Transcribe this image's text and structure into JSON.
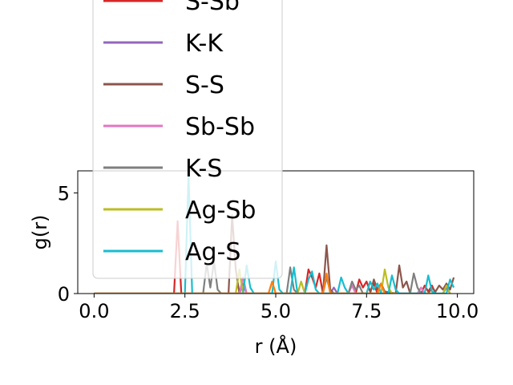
{
  "chart_data": {
    "type": "line",
    "xlabel": "r (Å)",
    "ylabel": "g(r)",
    "xlim": [
      -0.45,
      10.45
    ],
    "ylim": [
      0,
      6.1
    ],
    "xticks": [
      0.0,
      2.5,
      5.0,
      7.5,
      10.0
    ],
    "xtick_labels": [
      "0.0",
      "2.5",
      "5.0",
      "7.5",
      "10.0"
    ],
    "yticks": [
      0,
      5
    ],
    "ytick_labels": [
      "0",
      "5"
    ],
    "grid": false,
    "legend_placement": "upper-left, extending above the axes",
    "series": [
      {
        "name": "S-Sb",
        "color": "#d62728",
        "points": [
          [
            0,
            0
          ],
          [
            2.2,
            0
          ],
          [
            2.3,
            3.6
          ],
          [
            2.4,
            0
          ],
          [
            5.8,
            0
          ],
          [
            5.9,
            1.2
          ],
          [
            6.0,
            0.8
          ],
          [
            6.1,
            0.3
          ],
          [
            6.2,
            1.0
          ],
          [
            6.3,
            0
          ],
          [
            7.2,
            0
          ],
          [
            7.3,
            0.7
          ],
          [
            7.4,
            0.3
          ],
          [
            7.5,
            0.6
          ],
          [
            7.6,
            0.1
          ],
          [
            7.7,
            0.5
          ],
          [
            7.8,
            0
          ],
          [
            9.0,
            0
          ],
          [
            9.1,
            0.4
          ],
          [
            9.2,
            0.1
          ],
          [
            9.3,
            0.4
          ],
          [
            9.4,
            0
          ]
        ]
      },
      {
        "name": "K-K",
        "color": "#9467bd",
        "points": [
          [
            0,
            0
          ],
          [
            4.0,
            0
          ],
          [
            4.1,
            0.5
          ],
          [
            4.2,
            0
          ],
          [
            6.5,
            0
          ],
          [
            6.6,
            0.3
          ],
          [
            6.7,
            0
          ],
          [
            9.6,
            0
          ],
          [
            9.7,
            0.3
          ],
          [
            9.8,
            0
          ]
        ]
      },
      {
        "name": "S-S",
        "color": "#8c564b",
        "points": [
          [
            0,
            0
          ],
          [
            3.7,
            0
          ],
          [
            3.8,
            3.9
          ],
          [
            3.9,
            1.2
          ],
          [
            4.0,
            0
          ],
          [
            6.3,
            0
          ],
          [
            6.4,
            2.4
          ],
          [
            6.5,
            0.2
          ],
          [
            6.6,
            0
          ],
          [
            7.6,
            0
          ],
          [
            7.7,
            0.7
          ],
          [
            7.8,
            0.2
          ],
          [
            7.9,
            0.5
          ],
          [
            8.0,
            0.1
          ],
          [
            8.3,
            0
          ],
          [
            8.4,
            1.4
          ],
          [
            8.5,
            0.3
          ],
          [
            8.6,
            0.6
          ],
          [
            8.7,
            0
          ],
          [
            9.2,
            0
          ],
          [
            9.3,
            0.3
          ],
          [
            9.4,
            0.1
          ],
          [
            9.5,
            0.4
          ],
          [
            9.6,
            0.2
          ],
          [
            9.7,
            0.5
          ],
          [
            9.8,
            0.2
          ],
          [
            9.9,
            0.8
          ]
        ]
      },
      {
        "name": "Sb-Sb",
        "color": "#e377c2",
        "points": [
          [
            0,
            0
          ],
          [
            4.0,
            0
          ],
          [
            4.1,
            0.8
          ],
          [
            4.2,
            0
          ],
          [
            7.0,
            0
          ],
          [
            7.1,
            0.4
          ],
          [
            7.2,
            0
          ],
          [
            8.9,
            0
          ],
          [
            9.0,
            0.3
          ],
          [
            9.1,
            0
          ]
        ]
      },
      {
        "name": "K-S",
        "color": "#7f7f7f",
        "points": [
          [
            0,
            0
          ],
          [
            3.0,
            0
          ],
          [
            3.1,
            1.5
          ],
          [
            3.2,
            0.3
          ],
          [
            3.3,
            1.6
          ],
          [
            3.4,
            0.2
          ],
          [
            3.5,
            0
          ],
          [
            5.3,
            0
          ],
          [
            5.4,
            1.3
          ],
          [
            5.5,
            0.2
          ],
          [
            5.6,
            0
          ],
          [
            6.3,
            0
          ],
          [
            6.4,
            0.8
          ],
          [
            6.5,
            0.1
          ],
          [
            6.6,
            0
          ],
          [
            7.0,
            0
          ],
          [
            7.1,
            0.6
          ],
          [
            7.2,
            0.2
          ],
          [
            7.3,
            0.4
          ],
          [
            7.4,
            0
          ],
          [
            8.7,
            0
          ],
          [
            8.8,
            1.0
          ],
          [
            8.9,
            0.3
          ],
          [
            9.0,
            0
          ]
        ]
      },
      {
        "name": "Ag-Sb",
        "color": "#bcbd22",
        "points": [
          [
            0,
            0
          ],
          [
            3.9,
            0
          ],
          [
            4.0,
            1.2
          ],
          [
            4.1,
            0
          ],
          [
            5.6,
            0
          ],
          [
            5.7,
            0.6
          ],
          [
            5.8,
            0
          ],
          [
            7.9,
            0
          ],
          [
            8.0,
            1.2
          ],
          [
            8.1,
            0.3
          ],
          [
            8.2,
            0
          ],
          [
            9.6,
            0
          ],
          [
            9.7,
            0.4
          ],
          [
            9.8,
            0
          ]
        ]
      },
      {
        "name": "Ag-S",
        "color": "#17becf",
        "points": [
          [
            0,
            0
          ],
          [
            2.5,
            0
          ],
          [
            2.6,
            5.9
          ],
          [
            2.7,
            0
          ],
          [
            4.1,
            0
          ],
          [
            4.2,
            1.4
          ],
          [
            4.3,
            0.3
          ],
          [
            4.4,
            0
          ],
          [
            4.9,
            0
          ],
          [
            5.0,
            1.6
          ],
          [
            5.1,
            0.2
          ],
          [
            5.2,
            0
          ],
          [
            5.4,
            0
          ],
          [
            5.5,
            1.3
          ],
          [
            5.6,
            0
          ],
          [
            5.8,
            0
          ],
          [
            5.9,
            0.7
          ],
          [
            6.0,
            1.1
          ],
          [
            6.1,
            0.2
          ],
          [
            6.2,
            0
          ],
          [
            6.7,
            0
          ],
          [
            6.8,
            0.8
          ],
          [
            6.9,
            0.3
          ],
          [
            7.0,
            0
          ],
          [
            7.5,
            0
          ],
          [
            7.6,
            0.6
          ],
          [
            7.7,
            0.2
          ],
          [
            7.8,
            0.5
          ],
          [
            7.9,
            0
          ],
          [
            8.1,
            0
          ],
          [
            8.2,
            0.9
          ],
          [
            8.3,
            0.2
          ],
          [
            8.4,
            0
          ],
          [
            9.1,
            0
          ],
          [
            9.2,
            0.9
          ],
          [
            9.3,
            0.1
          ],
          [
            9.4,
            0
          ],
          [
            9.7,
            0
          ],
          [
            9.8,
            0.7
          ],
          [
            9.9,
            0.3
          ]
        ]
      },
      {
        "name": "",
        "color": "#ff7f0e",
        "points": [
          [
            0,
            0
          ],
          [
            4.8,
            0
          ],
          [
            4.9,
            0.6
          ],
          [
            5.0,
            0
          ],
          [
            6.3,
            0
          ],
          [
            6.4,
            1.0
          ],
          [
            6.5,
            0
          ],
          [
            7.8,
            0
          ],
          [
            7.9,
            0.5
          ],
          [
            8.0,
            0
          ]
        ]
      }
    ]
  }
}
